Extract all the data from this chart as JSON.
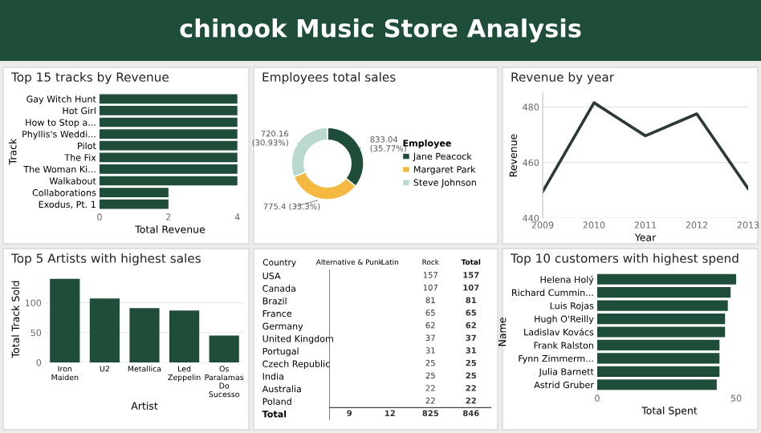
{
  "chart_data": [
    {
      "type": "other",
      "title": "chinook Music Store Analysis"
    },
    {
      "type": "bar",
      "title": "Top 15 tracks by Revenue",
      "orientation": "horizontal",
      "xlabel": "Total Revenue",
      "ylabel": "Track",
      "categories": [
        "Gay Witch Hunt",
        "Hot Girl",
        "How to Stop a...",
        "Phyllis's Weddi...",
        "Pilot",
        "The Fix",
        "The Woman Ki...",
        "Walkabout",
        "Collaborations",
        "Exodus, Pt. 1"
      ],
      "values": [
        4,
        4,
        4,
        4,
        4,
        4,
        4,
        4,
        2,
        2
      ],
      "color": "#1e4d3a",
      "xlim": [
        0,
        4.1
      ],
      "xticks": [
        0,
        2,
        4
      ],
      "grid": false
    },
    {
      "type": "donut",
      "title": "Employees total sales",
      "legend_title": "Employee",
      "legend": "right",
      "categories": [
        "Jane Peacock",
        "Margaret Park",
        "Steve Johnson"
      ],
      "values": [
        833.04,
        775.4,
        720.16
      ],
      "colors": [
        "#1e4d3a",
        "#f5b942",
        "#b9d9d0"
      ],
      "value_labels": [
        "833.04\n(35.77%)",
        "775.4 (33.3%)",
        "720.16\n(30.93%)"
      ]
    },
    {
      "type": "line",
      "title": "Revenue by year",
      "xlabel": "Year",
      "ylabel": "Revenue",
      "x": [
        2009,
        2010,
        2011,
        2012,
        2013
      ],
      "values": [
        449.5,
        481.5,
        469.6,
        477.5,
        450.6
      ],
      "color": "#2b3a33",
      "xlim": [
        2009,
        2013
      ],
      "xticks": [
        2009,
        2010,
        2011,
        2012,
        2013
      ],
      "ylim": [
        440,
        485
      ],
      "yticks": [
        440,
        460,
        480
      ],
      "grid": "y",
      "marker": "none",
      "line_style": "solid"
    },
    {
      "type": "bar",
      "title": "Top 5 Artists with highest sales",
      "xlabel": "Artist",
      "ylabel": "Total Track Sold",
      "categories": [
        "Iron\nMaiden",
        "U2",
        "Metallica",
        "Led\nZeppelin",
        "Os\nParalamas\nDo\nSucesso"
      ],
      "values": [
        140,
        107,
        91,
        87,
        45
      ],
      "color": "#1e4d3a",
      "ylim": [
        0,
        145
      ],
      "yticks": [
        0,
        50,
        100
      ],
      "grid": "y"
    },
    {
      "type": "heatmap",
      "ylabel": "Country",
      "categories": [
        "Alternative & Punk",
        "Latin",
        "Rock",
        "Total"
      ],
      "y_categories": [
        "USA",
        "Canada",
        "Brazil",
        "France",
        "Germany",
        "United Kingdom",
        "Portugal",
        "Czech Republic",
        "India",
        "Australia",
        "Poland",
        "Total"
      ],
      "cells": [
        [
          null,
          null,
          157,
          157
        ],
        [
          null,
          null,
          107,
          107
        ],
        [
          null,
          null,
          81,
          81
        ],
        [
          null,
          null,
          65,
          65
        ],
        [
          null,
          null,
          62,
          62
        ],
        [
          null,
          null,
          37,
          37
        ],
        [
          null,
          null,
          31,
          31
        ],
        [
          null,
          null,
          25,
          25
        ],
        [
          null,
          null,
          25,
          25
        ],
        [
          null,
          null,
          22,
          22
        ],
        [
          null,
          null,
          22,
          22
        ],
        [
          9,
          12,
          825,
          846
        ]
      ],
      "data_labels": true
    },
    {
      "type": "bar",
      "title": "Top 10 customers with highest spend",
      "orientation": "horizontal",
      "xlabel": "Total Spent",
      "ylabel": "Name",
      "categories": [
        "Helena Holý",
        "Richard Cummin...",
        "Luis Rojas",
        "Hugh O'Reilly",
        "Ladislav Kovács",
        "Frank Ralston",
        "Fynn Zimmerm...",
        "Julia Barnett",
        "Astrid Gruber"
      ],
      "values": [
        50,
        48,
        47,
        46,
        46,
        44,
        44,
        44,
        43
      ],
      "color": "#1e4d3a",
      "xlim": [
        0,
        52
      ],
      "xticks": [
        0,
        50
      ],
      "grid": false
    }
  ]
}
